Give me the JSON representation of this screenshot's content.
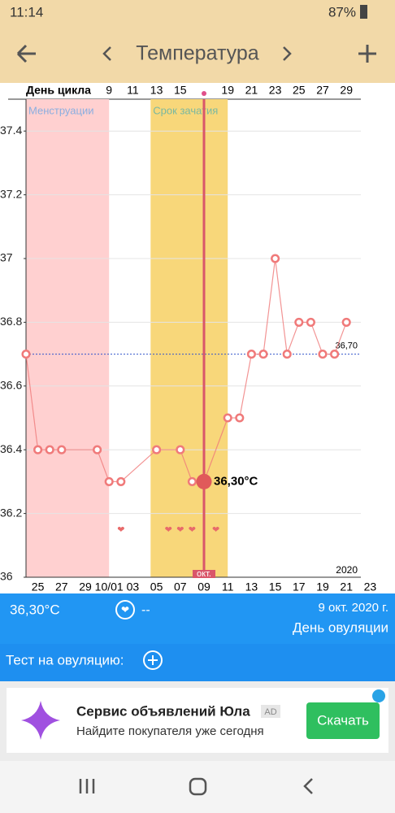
{
  "status_bar": {
    "time": "11:14",
    "battery": "87%"
  },
  "header": {
    "title": "Температура"
  },
  "chart_data": {
    "type": "line",
    "cycle_label": "День цикла",
    "cycle_days": [
      null,
      null,
      null,
      null,
      null,
      null,
      null,
      9,
      null,
      11,
      null,
      13,
      null,
      15,
      null,
      null,
      null,
      19,
      null,
      21,
      null,
      23,
      null,
      25,
      null,
      27,
      null,
      29,
      null,
      null
    ],
    "categories": [
      null,
      "25",
      null,
      "27",
      null,
      "29",
      null,
      "10/01",
      null,
      "03",
      null,
      "05",
      null,
      "07",
      null,
      "09",
      null,
      "11",
      null,
      "13",
      null,
      "15",
      null,
      "17",
      null,
      "19",
      null,
      "21",
      null,
      "23"
    ],
    "values": [
      36.7,
      36.4,
      36.4,
      36.4,
      null,
      null,
      36.4,
      36.3,
      36.3,
      null,
      null,
      36.4,
      null,
      36.4,
      36.3,
      36.3,
      null,
      36.5,
      36.5,
      36.7,
      36.7,
      37.0,
      36.7,
      36.8,
      36.8,
      36.7,
      36.7,
      36.8,
      null,
      null
    ],
    "value_labels": [
      null,
      null,
      null,
      null,
      null,
      null,
      null,
      null,
      null,
      null,
      null,
      null,
      null,
      null,
      null,
      "36,30°C",
      null,
      null,
      null,
      null,
      null,
      null,
      null,
      null,
      null,
      null,
      null,
      null,
      null,
      null
    ],
    "color": "#f07a7a",
    "ylim": [
      36,
      37.5
    ],
    "yticks": [
      36,
      36.2,
      36.4,
      36.6,
      36.8,
      37,
      37.2,
      37.4
    ],
    "grid": true,
    "regions": [
      {
        "label": "Менструации",
        "color": "#ffd0d0"
      },
      {
        "label": "Срок зачатия",
        "color": "#f8d77a"
      }
    ],
    "reference": {
      "value": 36.7,
      "label": "36,70"
    },
    "year": "2020",
    "month": "окт."
  },
  "summary": {
    "temperature": "36,30°C",
    "sex": "--",
    "date": "9 окт. 2020 г.",
    "status": "День овуляции"
  },
  "ovulation_test": "Тест на овуляцию:",
  "ad": {
    "title": "Сервис объявлений Юла",
    "badge": "AD",
    "text": "Найдите покупателя уже сегодня",
    "button": "Скачать"
  }
}
